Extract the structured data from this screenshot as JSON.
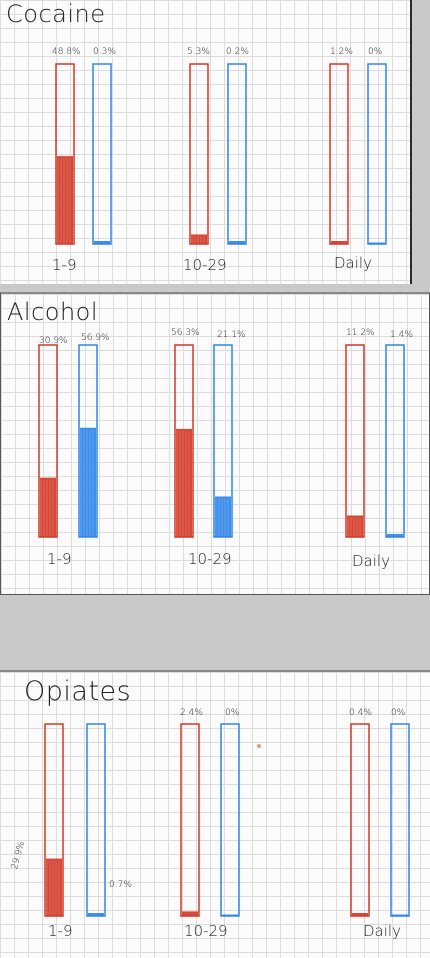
{
  "chart_data": [
    {
      "type": "bar",
      "title": "Cocaine",
      "categories": [
        "1-9",
        "10-29",
        "Daily"
      ],
      "series": [
        {
          "values": [
            48.8,
            5.3,
            1.2
          ],
          "labels": [
            "48.8%",
            "5.3%",
            "1.2%"
          ]
        },
        {
          "values": [
            0.3,
            0.2,
            0
          ],
          "labels": [
            "0.3%",
            "0.2%",
            "0%"
          ]
        }
      ]
    },
    {
      "type": "bar",
      "title": "Alcohol",
      "categories": [
        "1-9",
        "10-29",
        "Daily"
      ],
      "series": [
        {
          "values": [
            30.9,
            56.3,
            11.2
          ],
          "labels": [
            "30.9%",
            "56.3%",
            "11.2%"
          ]
        },
        {
          "values": [
            56.9,
            21.1,
            1.4
          ],
          "labels": [
            "56.9%",
            "21.1%",
            "1.4%"
          ]
        }
      ]
    },
    {
      "type": "bar",
      "title": "Opiates",
      "categories": [
        "1-9",
        "10-29",
        "Daily"
      ],
      "series": [
        {
          "values": [
            29.9,
            2.4,
            0.4
          ],
          "labels": [
            "29.9%",
            "2.4%",
            "0.4%"
          ]
        },
        {
          "values": [
            0.7,
            0,
            0
          ],
          "labels": [
            "0.7%",
            "0%",
            "0%"
          ]
        }
      ]
    }
  ],
  "colors": {
    "red": "#d23a26",
    "blue": "#2f86e8"
  }
}
